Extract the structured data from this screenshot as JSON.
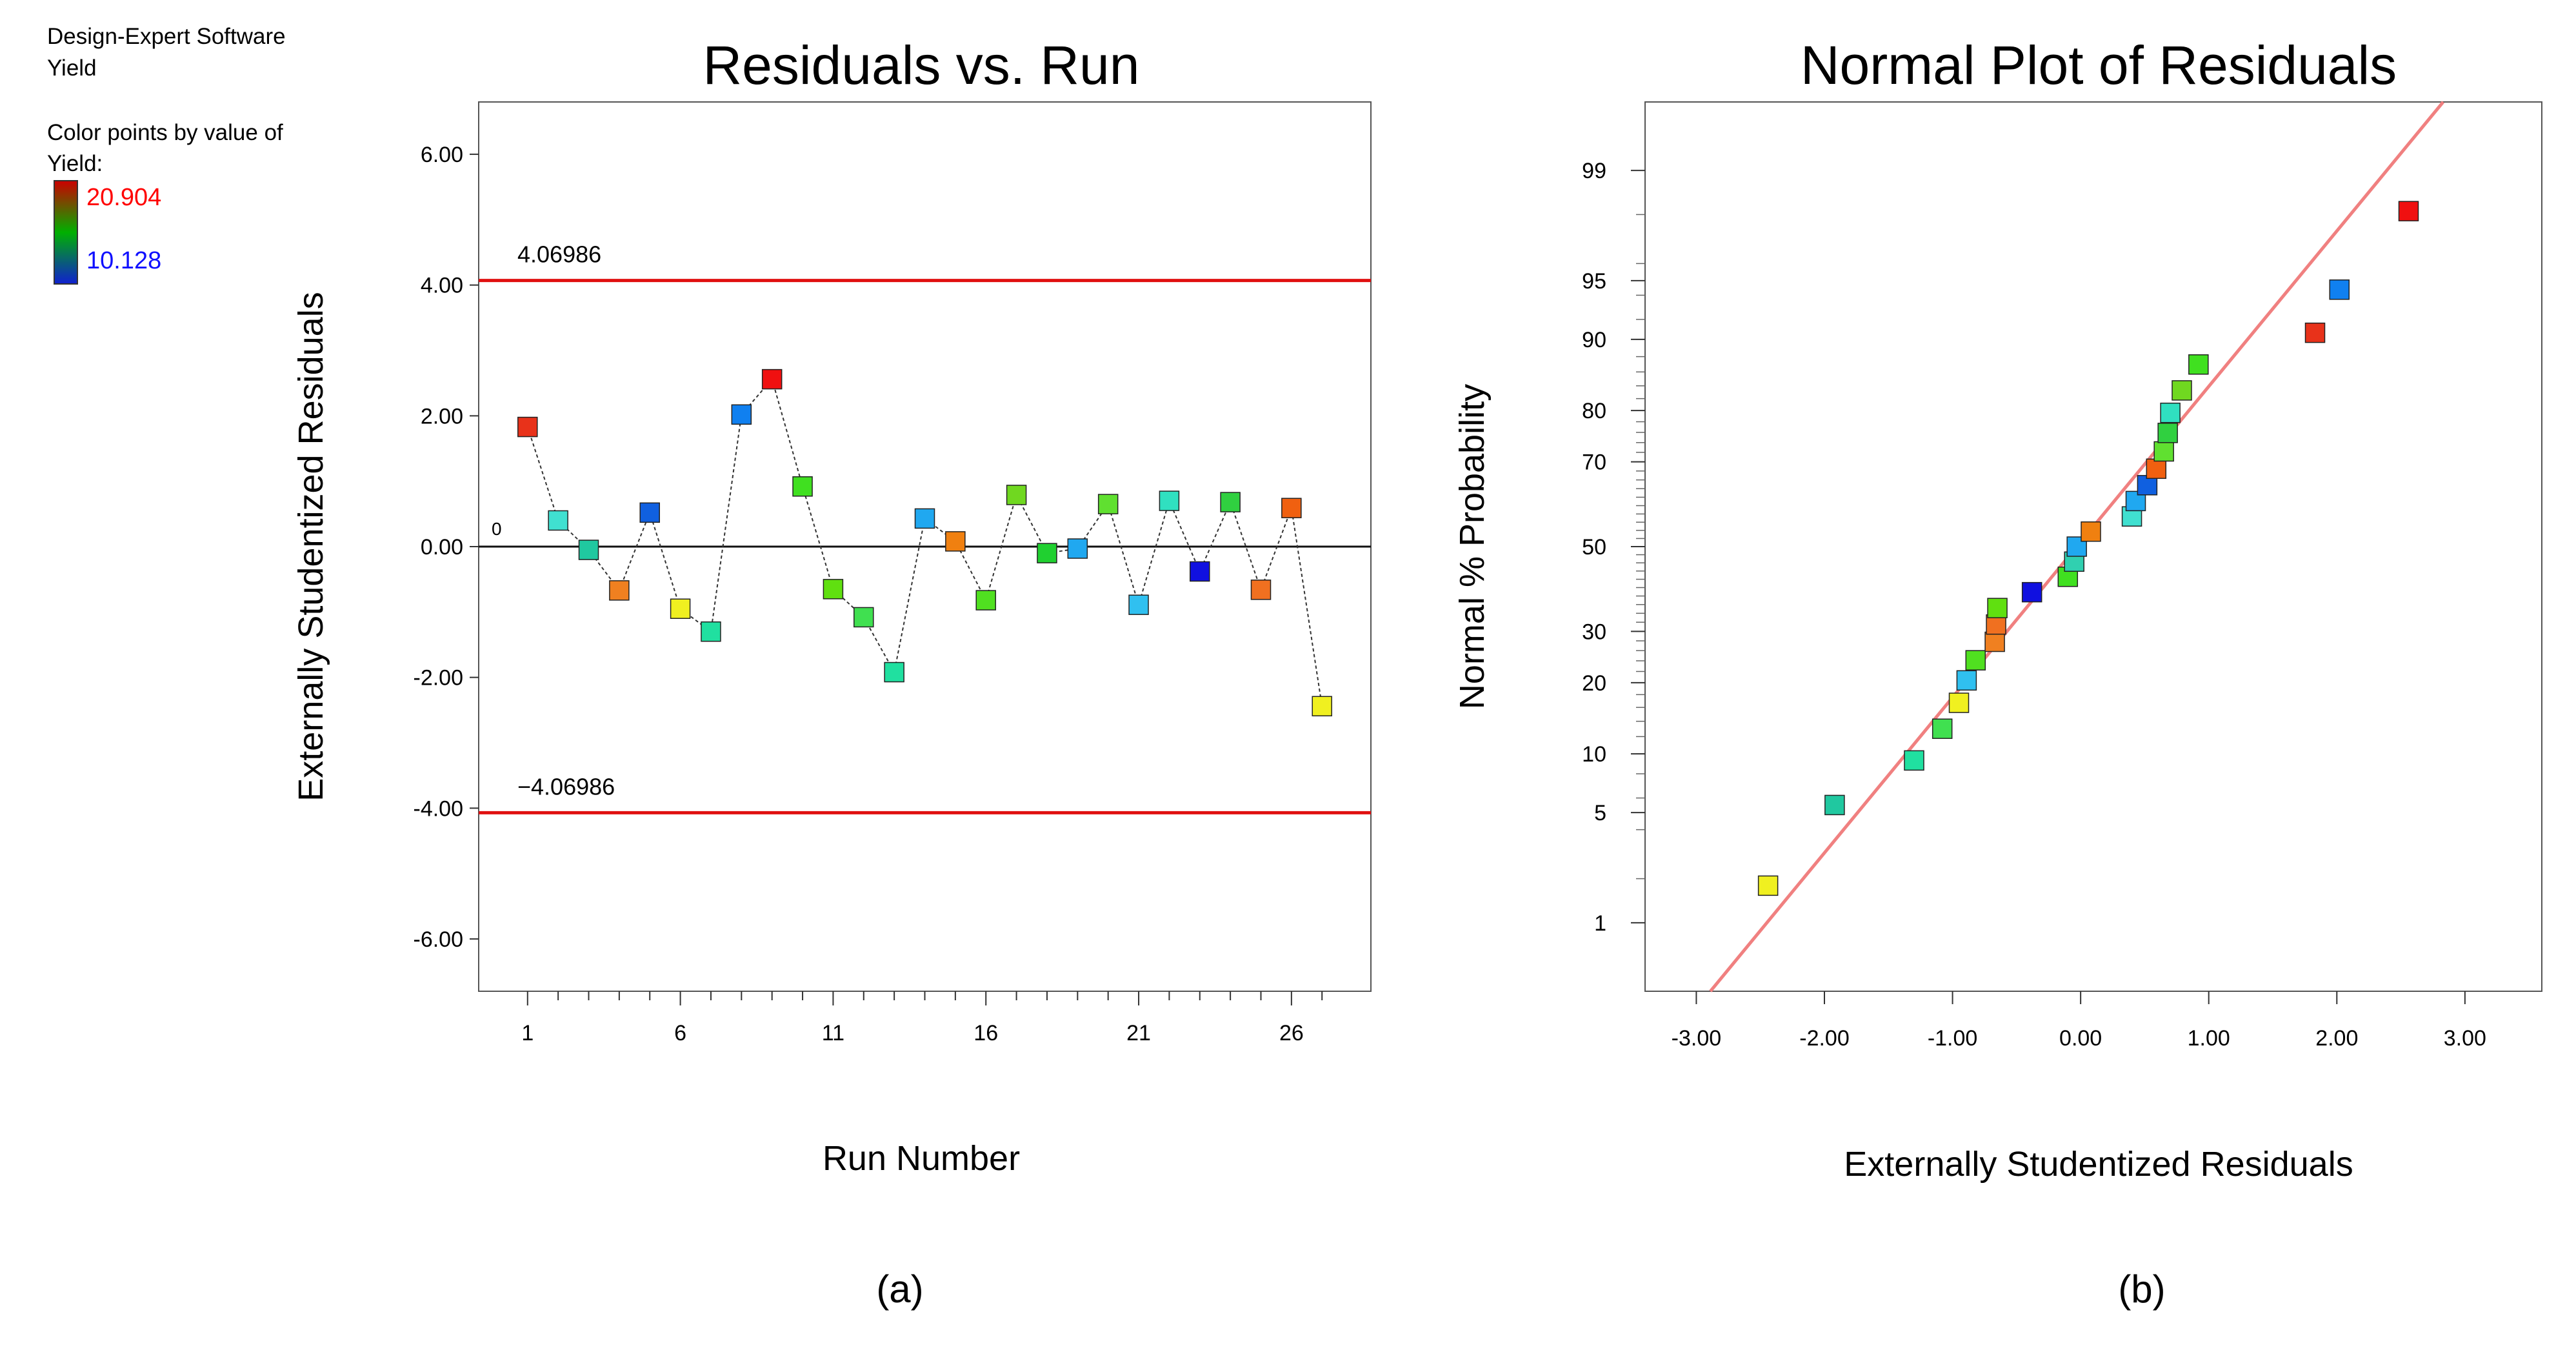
{
  "legend": {
    "software": "Design-Expert Software",
    "response": "Yield",
    "color_caption_line1": "Color points by value of",
    "color_caption_line2": "Yield:",
    "max_label": "20.904",
    "min_label": "10.128",
    "max_color": "#ff0000",
    "min_color": "#1010ff",
    "gradient_colors": [
      "#cc0000",
      "#00b000",
      "#1020d0"
    ]
  },
  "chart_data": [
    {
      "type": "line",
      "panel_caption": "(a)",
      "title": "Residuals vs. Run",
      "xlabel": "Run Number",
      "ylabel": "Externally Studentized Residuals",
      "xlim": [
        -0.6,
        28.6
      ],
      "ylim": [
        -6.8,
        6.8
      ],
      "x_ticks": [
        "1",
        "6",
        "11",
        "16",
        "21",
        "26"
      ],
      "x_tick_values": [
        1,
        6,
        11,
        16,
        21,
        26
      ],
      "y_ticks": [
        "6.00",
        "4.00",
        "2.00",
        "0.00",
        "-2.00",
        "-4.00",
        "-6.00"
      ],
      "y_tick_values": [
        6,
        4,
        2,
        0,
        -2,
        -4,
        -6
      ],
      "upper_limit": {
        "value": 4.06986,
        "label": "4.06986"
      },
      "lower_limit": {
        "value": -4.06986,
        "label": "−4.06986"
      },
      "zero_label": "0",
      "series": [
        {
          "name": "Residuals",
          "x": [
            1,
            2,
            3,
            4,
            5,
            6,
            7,
            8,
            9,
            10,
            11,
            12,
            13,
            14,
            15,
            16,
            17,
            18,
            19,
            20,
            21,
            22,
            23,
            24,
            25,
            26,
            27
          ],
          "y": [
            1.83,
            0.4,
            -0.05,
            -0.67,
            0.52,
            -0.95,
            -1.3,
            2.02,
            2.56,
            0.92,
            -0.65,
            -1.08,
            -1.92,
            0.43,
            0.08,
            -0.82,
            0.79,
            -0.1,
            -0.03,
            0.65,
            -0.89,
            0.7,
            -0.38,
            0.68,
            -0.66,
            0.59,
            -2.44
          ],
          "colors": [
            "#e8321a",
            "#40e0d0",
            "#20c8a0",
            "#f08020",
            "#1060e0",
            "#f0f020",
            "#20e0a0",
            "#1080f0",
            "#f01010",
            "#40e020",
            "#60e010",
            "#40e050",
            "#20e0a0",
            "#20a8f0",
            "#f08010",
            "#50e020",
            "#70d820",
            "#20d030",
            "#20a8f0",
            "#60e030",
            "#30c0f0",
            "#30e0c0",
            "#1010e0",
            "#30d040",
            "#f07020",
            "#f06010",
            "#f0f020"
          ]
        }
      ]
    },
    {
      "type": "scatter",
      "panel_caption": "(b)",
      "title": "Normal Plot of Residuals",
      "xlabel": "Externally Studentized Residuals",
      "ylabel": "Normal % Probability",
      "xlim": [
        -3.4,
        3.6
      ],
      "x_ticks": [
        "-3.00",
        "-2.00",
        "-1.00",
        "0.00",
        "1.00",
        "2.00",
        "3.00"
      ],
      "x_tick_values": [
        -3,
        -2,
        -1,
        0,
        1,
        2,
        3
      ],
      "y_ticks": [
        "99",
        "95",
        "90",
        "80",
        "70",
        "50",
        "30",
        "20",
        "10",
        "5",
        "1"
      ],
      "y_tick_values": [
        99,
        95,
        90,
        80,
        70,
        50,
        30,
        20,
        10,
        5,
        1
      ],
      "y_scale": "normal-probability",
      "reference_line": {
        "slope_per_z": 1.04,
        "intercept": -0.03,
        "color": "#f08080"
      },
      "series": [
        {
          "name": "Residuals",
          "x": [
            -2.44,
            -1.92,
            -1.3,
            -1.08,
            -0.95,
            -0.89,
            -0.82,
            -0.67,
            -0.66,
            -0.65,
            -0.38,
            -0.1,
            -0.05,
            -0.03,
            0.08,
            0.4,
            0.43,
            0.52,
            0.59,
            0.65,
            0.68,
            0.7,
            0.79,
            0.92,
            1.83,
            2.02,
            2.56
          ],
          "y": [
            1.8,
            5.5,
            9.3,
            13.0,
            16.7,
            20.4,
            24.1,
            27.8,
            31.5,
            35.2,
            38.9,
            42.6,
            46.3,
            50.0,
            53.7,
            57.4,
            61.1,
            64.8,
            68.5,
            72.2,
            75.9,
            79.6,
            83.3,
            87.0,
            90.7,
            94.4,
            98.1
          ],
          "colors": [
            "#f0f020",
            "#20c8a0",
            "#20e0a0",
            "#40e050",
            "#f0f020",
            "#30c0f0",
            "#50e020",
            "#f08020",
            "#f07020",
            "#60e010",
            "#1010e0",
            "#40e020",
            "#30d0b0",
            "#20a8f0",
            "#f08010",
            "#40e0d0",
            "#20a8f0",
            "#1060e0",
            "#f06010",
            "#60e030",
            "#30d040",
            "#30e0c0",
            "#70d820",
            "#40e020",
            "#e8321a",
            "#1080f0",
            "#f01010"
          ]
        }
      ]
    }
  ]
}
